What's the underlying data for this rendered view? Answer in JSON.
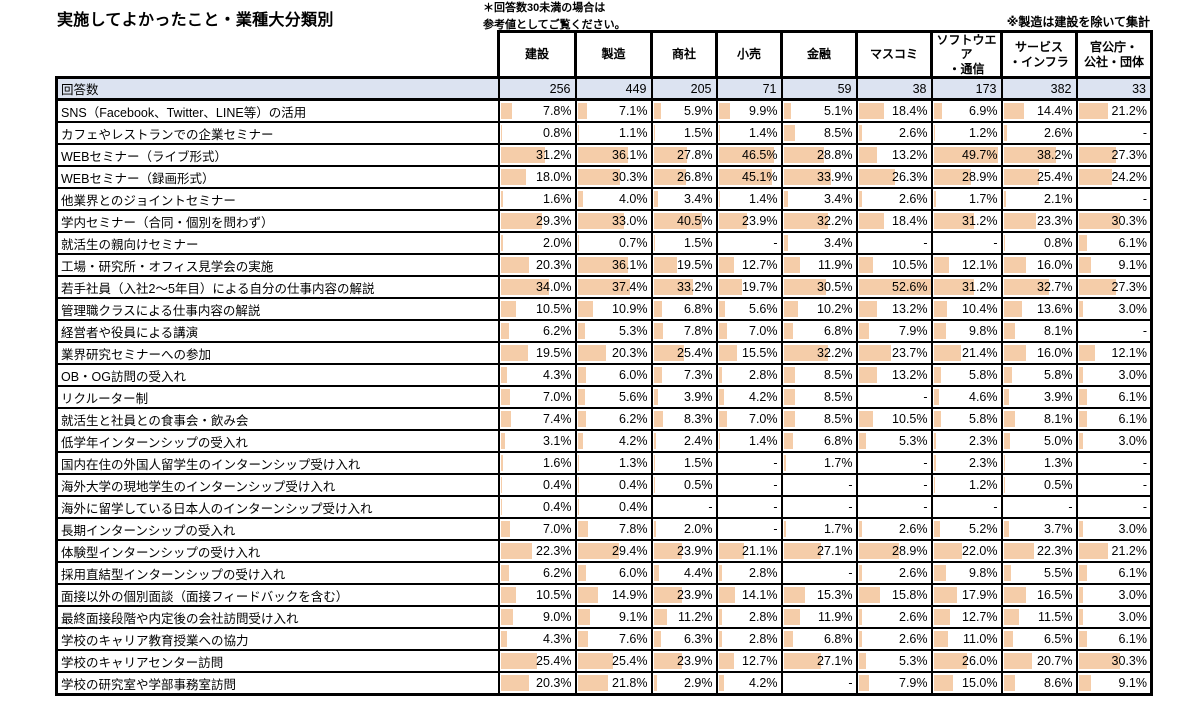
{
  "title": "実施してよかったこと・業種大分類別",
  "notes": {
    "caution_line1": "＊回答数30未満の場合は",
    "caution_line2": "参考値としてご覧ください。",
    "right_note": "※製造は建設を除いて集計"
  },
  "colors": {
    "bar": "#F5CDA9",
    "count_row_bg": "#DCE3F1",
    "border": "#000000"
  },
  "chart_data": {
    "type": "table",
    "title": "実施してよかったこと・業種大分類別",
    "value_format": "percent",
    "bar_scale_max": 52.6,
    "count_row_label": "回答数",
    "columns": [
      {
        "name": "建設",
        "lines": [
          "建設"
        ]
      },
      {
        "name": "製造",
        "lines": [
          "製造"
        ]
      },
      {
        "name": "商社",
        "lines": [
          "商社"
        ]
      },
      {
        "name": "小売",
        "lines": [
          "小売"
        ]
      },
      {
        "name": "金融",
        "lines": [
          "金融"
        ]
      },
      {
        "name": "マスコミ",
        "lines": [
          "マスコミ"
        ]
      },
      {
        "name": "ソフトウエア・通信",
        "lines": [
          "ソフトウエ",
          "ア",
          "・通信"
        ]
      },
      {
        "name": "サービス・インフラ",
        "lines": [
          "サービス",
          "・インフラ"
        ]
      },
      {
        "name": "官公庁・公社・団体",
        "lines": [
          "官公庁・",
          "公社・団体"
        ]
      }
    ],
    "response_counts": [
      256,
      449,
      205,
      71,
      59,
      38,
      173,
      382,
      33
    ],
    "rows": [
      {
        "label": "SNS（Facebook、Twitter、LINE等）の活用",
        "values": [
          7.8,
          7.1,
          5.9,
          9.9,
          5.1,
          18.4,
          6.9,
          14.4,
          21.2
        ]
      },
      {
        "label": "カフェやレストランでの企業セミナー",
        "values": [
          0.8,
          1.1,
          1.5,
          1.4,
          8.5,
          2.6,
          1.2,
          2.6,
          null
        ]
      },
      {
        "label": "WEBセミナー（ライブ形式）",
        "values": [
          31.2,
          36.1,
          27.8,
          46.5,
          28.8,
          13.2,
          49.7,
          38.2,
          27.3
        ]
      },
      {
        "label": "WEBセミナー（録画形式）",
        "values": [
          18.0,
          30.3,
          26.8,
          45.1,
          33.9,
          26.3,
          28.9,
          25.4,
          24.2
        ]
      },
      {
        "label": "他業界とのジョイントセミナー",
        "values": [
          1.6,
          4.0,
          3.4,
          1.4,
          3.4,
          2.6,
          1.7,
          2.1,
          null
        ]
      },
      {
        "label": "学内セミナー（合同・個別を問わず）",
        "values": [
          29.3,
          33.0,
          40.5,
          23.9,
          32.2,
          18.4,
          31.2,
          23.3,
          30.3
        ]
      },
      {
        "label": "就活生の親向けセミナー",
        "values": [
          2.0,
          0.7,
          1.5,
          null,
          3.4,
          null,
          null,
          0.8,
          6.1
        ]
      },
      {
        "label": "工場・研究所・オフィス見学会の実施",
        "values": [
          20.3,
          36.1,
          19.5,
          12.7,
          11.9,
          10.5,
          12.1,
          16.0,
          9.1
        ]
      },
      {
        "label": "若手社員（入社2～5年目）による自分の仕事内容の解説",
        "values": [
          34.0,
          37.4,
          33.2,
          19.7,
          30.5,
          52.6,
          31.2,
          32.7,
          27.3
        ]
      },
      {
        "label": "管理職クラスによる仕事内容の解説",
        "values": [
          10.5,
          10.9,
          6.8,
          5.6,
          10.2,
          13.2,
          10.4,
          13.6,
          3.0
        ]
      },
      {
        "label": "経営者や役員による講演",
        "values": [
          6.2,
          5.3,
          7.8,
          7.0,
          6.8,
          7.9,
          9.8,
          8.1,
          null
        ]
      },
      {
        "label": "業界研究セミナーへの参加",
        "values": [
          19.5,
          20.3,
          25.4,
          15.5,
          32.2,
          23.7,
          21.4,
          16.0,
          12.1
        ]
      },
      {
        "label": "OB・OG訪問の受入れ",
        "values": [
          4.3,
          6.0,
          7.3,
          2.8,
          8.5,
          13.2,
          5.8,
          5.8,
          3.0
        ]
      },
      {
        "label": "リクルーター制",
        "values": [
          7.0,
          5.6,
          3.9,
          4.2,
          8.5,
          null,
          4.6,
          3.9,
          6.1
        ]
      },
      {
        "label": "就活生と社員との食事会・飲み会",
        "values": [
          7.4,
          6.2,
          8.3,
          7.0,
          8.5,
          10.5,
          5.8,
          8.1,
          6.1
        ]
      },
      {
        "label": "低学年インターンシップの受入れ",
        "values": [
          3.1,
          4.2,
          2.4,
          1.4,
          6.8,
          5.3,
          2.3,
          5.0,
          3.0
        ]
      },
      {
        "label": "国内在住の外国人留学生のインターンシップ受け入れ",
        "values": [
          1.6,
          1.3,
          1.5,
          null,
          1.7,
          null,
          2.3,
          1.3,
          null
        ]
      },
      {
        "label": "海外大学の現地学生のインターンシップ受け入れ",
        "values": [
          0.4,
          0.4,
          0.5,
          null,
          null,
          null,
          1.2,
          0.5,
          null
        ]
      },
      {
        "label": "海外に留学している日本人のインターンシップ受け入れ",
        "values": [
          0.4,
          0.4,
          null,
          null,
          null,
          null,
          null,
          null,
          null
        ]
      },
      {
        "label": "長期インターンシップの受入れ",
        "values": [
          7.0,
          7.8,
          2.0,
          null,
          1.7,
          2.6,
          5.2,
          3.7,
          3.0
        ]
      },
      {
        "label": "体験型インターンシップの受け入れ",
        "values": [
          22.3,
          29.4,
          23.9,
          21.1,
          27.1,
          28.9,
          22.0,
          22.3,
          21.2
        ]
      },
      {
        "label": "採用直結型インターンシップの受け入れ",
        "values": [
          6.2,
          6.0,
          4.4,
          2.8,
          null,
          2.6,
          9.8,
          5.5,
          6.1
        ]
      },
      {
        "label": "面接以外の個別面談（面接フィードバックを含む）",
        "values": [
          10.5,
          14.9,
          23.9,
          14.1,
          15.3,
          15.8,
          17.9,
          16.5,
          3.0
        ]
      },
      {
        "label": "最終面接段階や内定後の会社訪問受け入れ",
        "values": [
          9.0,
          9.1,
          11.2,
          2.8,
          11.9,
          2.6,
          12.7,
          11.5,
          3.0
        ]
      },
      {
        "label": "学校のキャリア教育授業への協力",
        "values": [
          4.3,
          7.6,
          6.3,
          2.8,
          6.8,
          2.6,
          11.0,
          6.5,
          6.1
        ]
      },
      {
        "label": "学校のキャリアセンター訪問",
        "values": [
          25.4,
          25.4,
          23.9,
          12.7,
          27.1,
          5.3,
          26.0,
          20.7,
          30.3
        ]
      },
      {
        "label": "学校の研究室や学部事務室訪問",
        "values": [
          20.3,
          21.8,
          2.9,
          4.2,
          null,
          7.9,
          15.0,
          8.6,
          9.1
        ]
      }
    ]
  }
}
